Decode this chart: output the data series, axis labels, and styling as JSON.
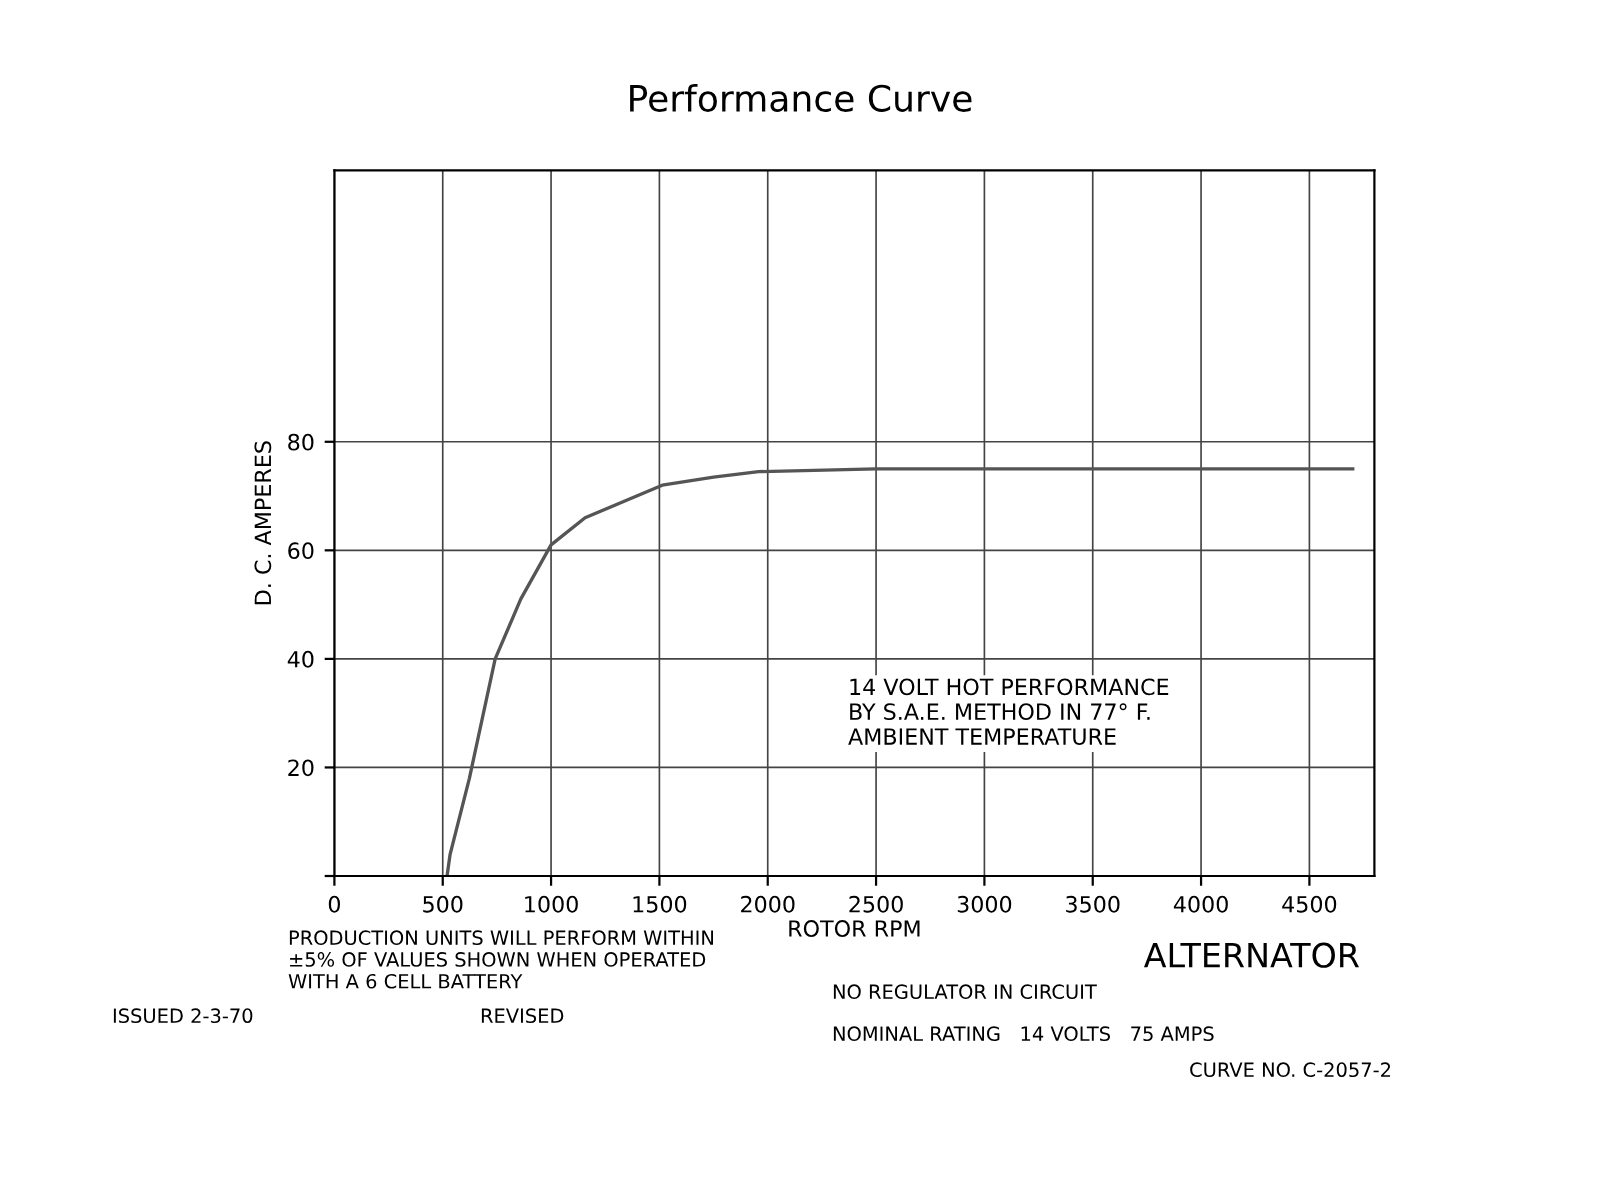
{
  "chart_data": {
    "type": "line",
    "title": "Performance Curve",
    "xlabel": "ROTOR RPM",
    "ylabel": "D. C. AMPERES",
    "x": [
      520,
      534,
      623,
      742,
      860,
      1000,
      1157,
      1335,
      1513,
      1750,
      1958,
      2500,
      3000,
      3500,
      4000,
      4500,
      4700
    ],
    "series": [
      {
        "color": "#555555",
        "values": [
          0,
          4,
          18,
          40,
          51,
          61,
          66,
          69,
          72,
          73.5,
          74.5,
          75,
          75,
          75,
          75,
          75,
          75
        ]
      }
    ],
    "xlim": [
      0,
      4800
    ],
    "ylim": [
      0,
      130
    ],
    "xticks": [
      0,
      500,
      1000,
      1500,
      2000,
      2500,
      3000,
      3500,
      4000,
      4500
    ],
    "yticks": [
      {
        "value": 0,
        "label": null
      },
      20,
      40,
      60,
      80
    ],
    "grid": true,
    "marker": "none",
    "line_style": "solid",
    "legend": false,
    "annotations": [
      "14 VOLT HOT PERFORMANCE\nBY S.A.E. METHOD IN 77° F.\nAMBIENT TEMPERATURE",
      "PRODUCTION UNITS WILL PERFORM WITHIN\n±5% OF VALUES SHOWN WHEN OPERATED\nWITH A 6 CELL BATTERY",
      "ISSUED 2-3-70",
      "REVISED",
      "ALTERNATOR",
      "NO REGULATOR IN CIRCUIT",
      "NOMINAL RATING   14 VOLTS   75 AMPS",
      "CURVE NO. C-2057-2"
    ]
  }
}
